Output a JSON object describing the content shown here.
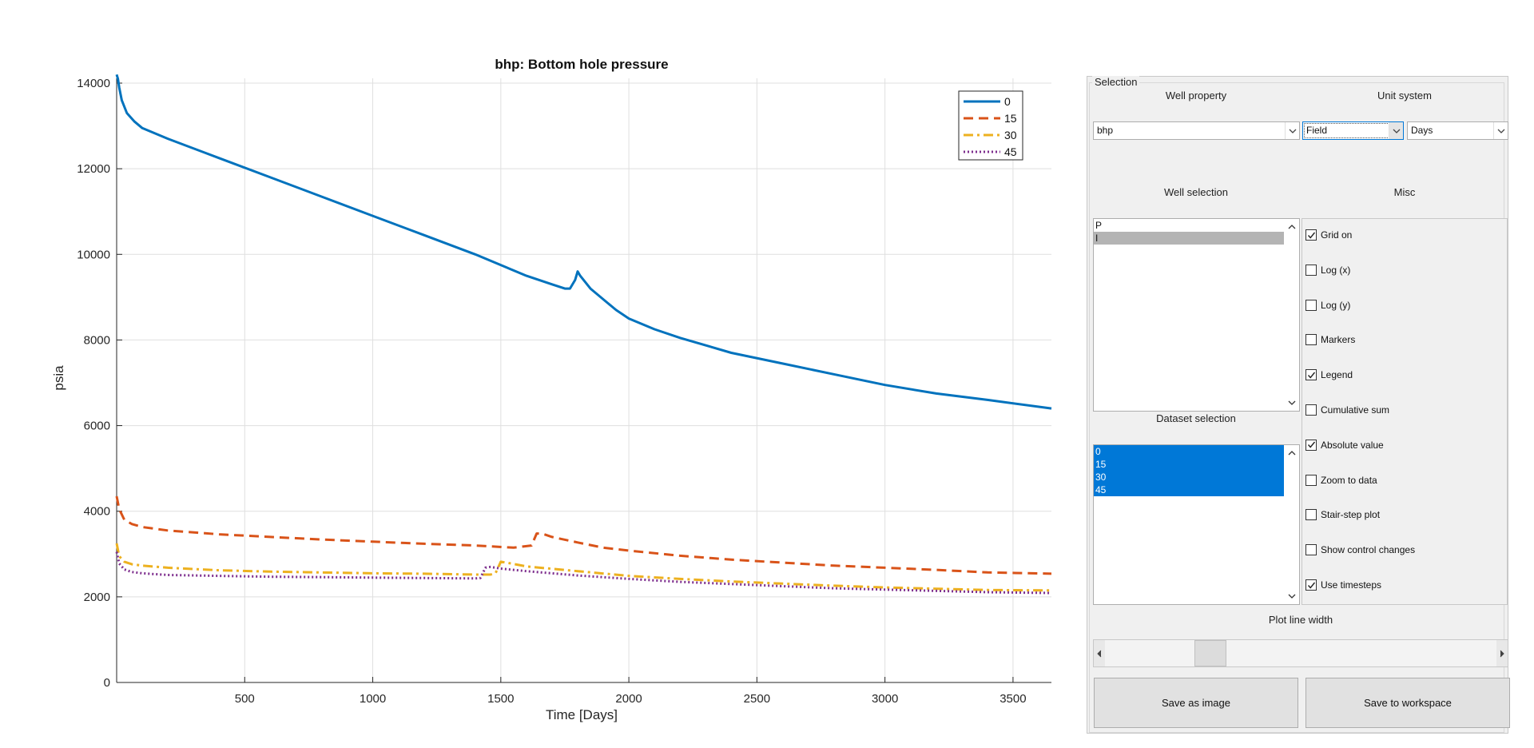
{
  "chart_data": {
    "type": "line",
    "title": "bhp: Bottom hole pressure",
    "xlabel": "Time [Days]",
    "ylabel": "psia",
    "xlim": [
      0,
      3650
    ],
    "ylim": [
      0,
      14000
    ],
    "xticks": [
      500,
      1000,
      1500,
      2000,
      2500,
      3000,
      3500
    ],
    "yticks": [
      0,
      2000,
      4000,
      6000,
      8000,
      10000,
      12000,
      14000
    ],
    "grid": true,
    "legend_position": "top-right",
    "series": [
      {
        "name": "0",
        "color": "#0072bd",
        "style": "solid",
        "x": [
          0,
          5,
          10,
          20,
          40,
          70,
          100,
          200,
          400,
          600,
          800,
          1000,
          1200,
          1400,
          1600,
          1700,
          1750,
          1770,
          1790,
          1800,
          1810,
          1850,
          1900,
          1950,
          2000,
          2100,
          2200,
          2400,
          2600,
          2800,
          3000,
          3200,
          3400,
          3650
        ],
        "y": [
          14200,
          14100,
          13900,
          13600,
          13300,
          13100,
          12950,
          12700,
          12250,
          11800,
          11350,
          10900,
          10450,
          10000,
          9500,
          9300,
          9200,
          9200,
          9400,
          9600,
          9500,
          9200,
          8950,
          8700,
          8500,
          8250,
          8050,
          7700,
          7450,
          7200,
          6950,
          6750,
          6600,
          6400
        ]
      },
      {
        "name": "15",
        "color": "#d95319",
        "style": "dashed",
        "x": [
          0,
          10,
          30,
          60,
          100,
          200,
          400,
          600,
          800,
          1000,
          1200,
          1400,
          1550,
          1620,
          1640,
          1660,
          1700,
          1800,
          1900,
          2000,
          2200,
          2400,
          2600,
          2800,
          3000,
          3200,
          3400,
          3650
        ],
        "y": [
          4350,
          4050,
          3800,
          3700,
          3630,
          3550,
          3460,
          3400,
          3340,
          3290,
          3240,
          3200,
          3150,
          3200,
          3480,
          3480,
          3400,
          3270,
          3150,
          3080,
          2960,
          2870,
          2800,
          2730,
          2680,
          2630,
          2570,
          2540
        ]
      },
      {
        "name": "30",
        "color": "#edb120",
        "style": "dashdot",
        "x": [
          0,
          10,
          30,
          60,
          100,
          200,
          400,
          600,
          800,
          1000,
          1200,
          1400,
          1460,
          1480,
          1500,
          1530,
          1600,
          1800,
          2000,
          2200,
          2400,
          2600,
          2800,
          3000,
          3200,
          3400,
          3650
        ],
        "y": [
          3250,
          2950,
          2820,
          2760,
          2730,
          2680,
          2620,
          2590,
          2570,
          2550,
          2540,
          2520,
          2520,
          2560,
          2820,
          2790,
          2710,
          2600,
          2490,
          2420,
          2360,
          2310,
          2260,
          2220,
          2190,
          2160,
          2150
        ]
      },
      {
        "name": "45",
        "color": "#7e2f8e",
        "style": "dotted",
        "x": [
          0,
          10,
          30,
          60,
          100,
          200,
          400,
          600,
          800,
          1000,
          1200,
          1400,
          1420,
          1440,
          1460,
          1500,
          1600,
          1800,
          2000,
          2200,
          2400,
          2600,
          2800,
          3000,
          3200,
          3400,
          3650
        ],
        "y": [
          3050,
          2780,
          2640,
          2580,
          2550,
          2510,
          2490,
          2470,
          2460,
          2450,
          2440,
          2430,
          2440,
          2680,
          2700,
          2660,
          2600,
          2500,
          2420,
          2350,
          2300,
          2250,
          2200,
          2170,
          2140,
          2110,
          2090
        ]
      }
    ]
  },
  "panel": {
    "group_title": "Selection",
    "well_property_label": "Well property",
    "unit_system_label": "Unit system",
    "well_property_value": "bhp",
    "unit_value": "Field",
    "time_unit_value": "Days",
    "well_selection_label": "Well selection",
    "misc_label": "Misc",
    "wells": [
      {
        "label": "P",
        "selected": false
      },
      {
        "label": "I",
        "selected": true
      }
    ],
    "dataset_selection_label": "Dataset selection",
    "datasets": [
      {
        "label": "0",
        "selected": true
      },
      {
        "label": "15",
        "selected": true
      },
      {
        "label": "30",
        "selected": true
      },
      {
        "label": "45",
        "selected": true
      }
    ],
    "options": [
      {
        "label": "Grid on",
        "checked": true
      },
      {
        "label": "Log (x)",
        "checked": false
      },
      {
        "label": "Log (y)",
        "checked": false
      },
      {
        "label": "Markers",
        "checked": false
      },
      {
        "label": "Legend",
        "checked": true
      },
      {
        "label": "Cumulative sum",
        "checked": false
      },
      {
        "label": "Absolute value",
        "checked": true
      },
      {
        "label": "Zoom to data",
        "checked": false
      },
      {
        "label": "Stair-step plot",
        "checked": false
      },
      {
        "label": "Show control changes",
        "checked": false
      },
      {
        "label": "Use timesteps",
        "checked": true
      }
    ],
    "line_width_label": "Plot line width",
    "line_width_value": 0.27,
    "save_image_label": "Save as image",
    "save_workspace_label": "Save to workspace"
  }
}
